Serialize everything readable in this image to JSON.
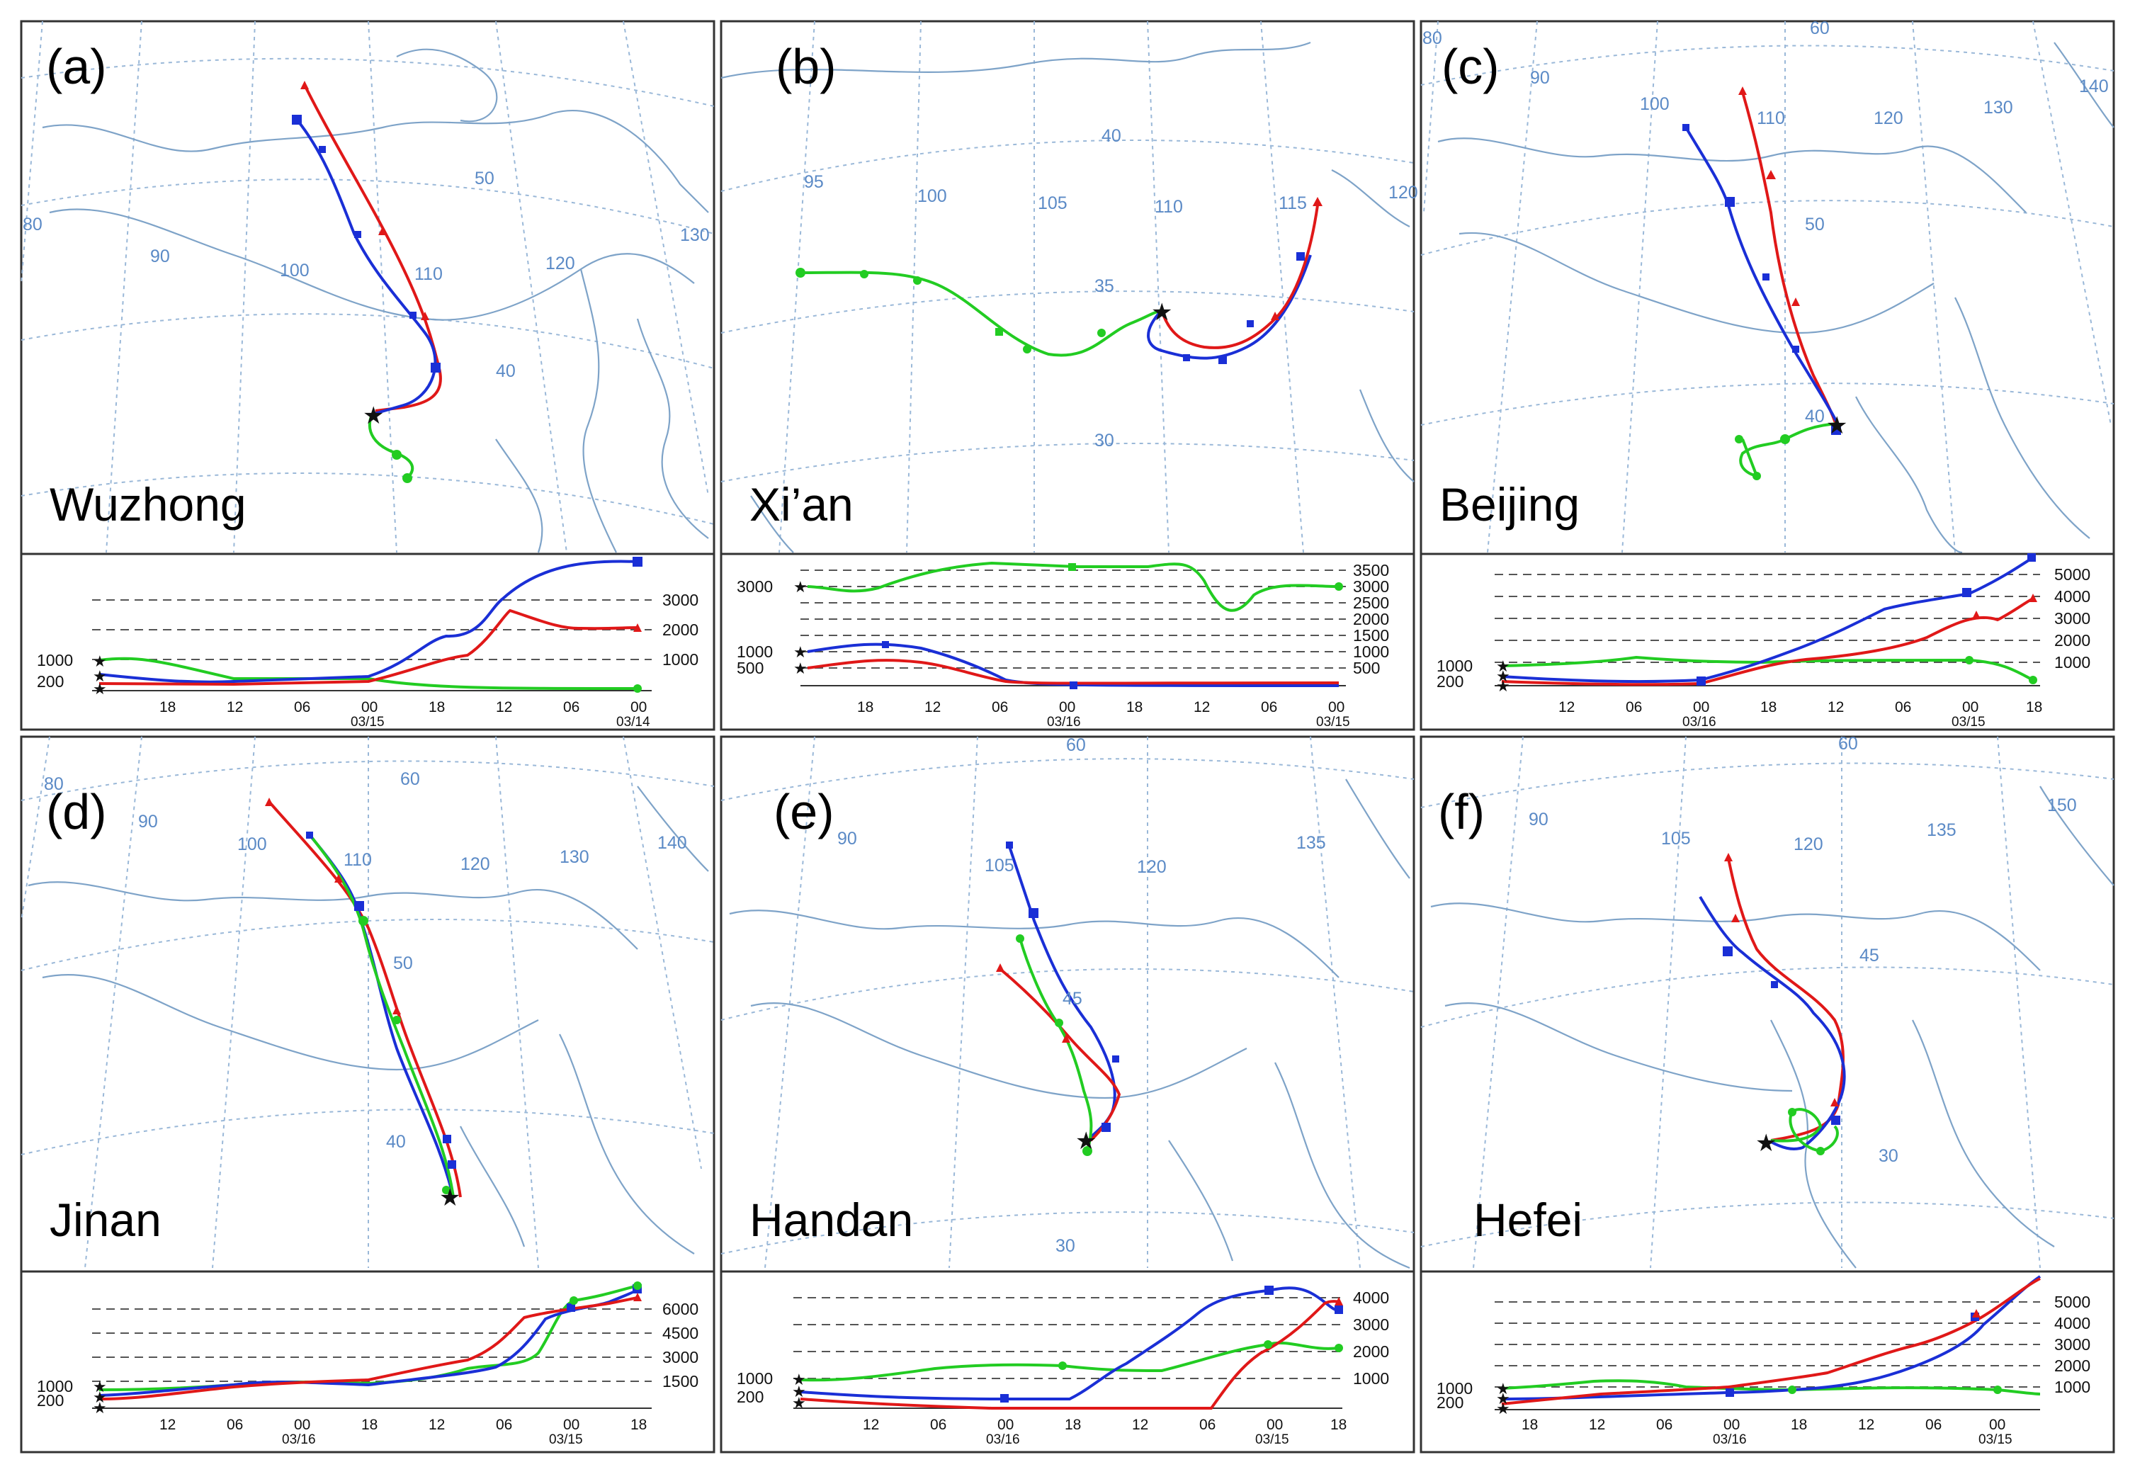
{
  "colors": {
    "red": "#e01818",
    "blue": "#1a2fd6",
    "green": "#22cc22",
    "land": "#7ea3c8",
    "grid": "#9ab8d8",
    "frame": "#333333"
  },
  "panels": [
    {
      "id": "a",
      "letter": "(a)",
      "city": "Wuzhong",
      "coord_labels": [
        "80",
        "90",
        "100",
        "110",
        "120",
        "130",
        "50",
        "40"
      ],
      "altitude_labels": [
        "3000",
        "2000",
        "1000"
      ],
      "start_labels": [
        "1000",
        "200"
      ],
      "time_ticks": [
        "18",
        "12",
        "06",
        "00",
        "18",
        "12",
        "06",
        "00"
      ],
      "dates": [
        "03/15",
        "03/14"
      ]
    },
    {
      "id": "b",
      "letter": "(b)",
      "city": "Xi’an",
      "coord_labels": [
        "95",
        "100",
        "105",
        "110",
        "115",
        "120",
        "40",
        "35",
        "30"
      ],
      "altitude_labels": [
        "3500",
        "3000",
        "2500",
        "2000",
        "1500",
        "1000",
        "500"
      ],
      "start_labels": [
        "3000",
        "1000",
        "500"
      ],
      "time_ticks": [
        "18",
        "12",
        "06",
        "00",
        "18",
        "12",
        "06",
        "00"
      ],
      "dates": [
        "03/16",
        "03/15"
      ]
    },
    {
      "id": "c",
      "letter": "(c)",
      "city": "Beijing",
      "coord_labels": [
        "80",
        "90",
        "100",
        "110",
        "120",
        "130",
        "140",
        "60",
        "50",
        "40"
      ],
      "altitude_labels": [
        "5000",
        "4000",
        "3000",
        "2000",
        "1000"
      ],
      "start_labels": [
        "1000",
        "200"
      ],
      "time_ticks": [
        "12",
        "06",
        "00",
        "18",
        "12",
        "06",
        "00",
        "18"
      ],
      "dates": [
        "03/16",
        "03/15"
      ]
    },
    {
      "id": "d",
      "letter": "(d)",
      "city": "Jinan",
      "coord_labels": [
        "80",
        "90",
        "100",
        "110",
        "120",
        "130",
        "140",
        "60",
        "50",
        "40"
      ],
      "altitude_labels": [
        "6000",
        "4500",
        "3000",
        "1500"
      ],
      "start_labels": [
        "1000",
        "200"
      ],
      "time_ticks": [
        "12",
        "06",
        "00",
        "18",
        "12",
        "06",
        "00",
        "18"
      ],
      "dates": [
        "03/16",
        "03/15"
      ]
    },
    {
      "id": "e",
      "letter": "(e)",
      "city": "Handan",
      "coord_labels": [
        "90",
        "105",
        "120",
        "135",
        "60",
        "45",
        "30"
      ],
      "altitude_labels": [
        "4000",
        "3000",
        "2000",
        "1000"
      ],
      "start_labels": [
        "1000",
        "200"
      ],
      "time_ticks": [
        "12",
        "06",
        "00",
        "18",
        "12",
        "06",
        "00",
        "18"
      ],
      "dates": [
        "03/16",
        "03/15"
      ]
    },
    {
      "id": "f",
      "letter": "(f)",
      "city": "Hefei",
      "coord_labels": [
        "90",
        "105",
        "120",
        "135",
        "150",
        "60",
        "45",
        "30"
      ],
      "altitude_labels": [
        "5000",
        "4000",
        "3000",
        "2000",
        "1000"
      ],
      "start_labels": [
        "1000",
        "200"
      ],
      "time_ticks": [
        "18",
        "12",
        "06",
        "00",
        "18",
        "12",
        "06",
        "00"
      ],
      "dates": [
        "03/16",
        "03/15"
      ]
    }
  ]
}
